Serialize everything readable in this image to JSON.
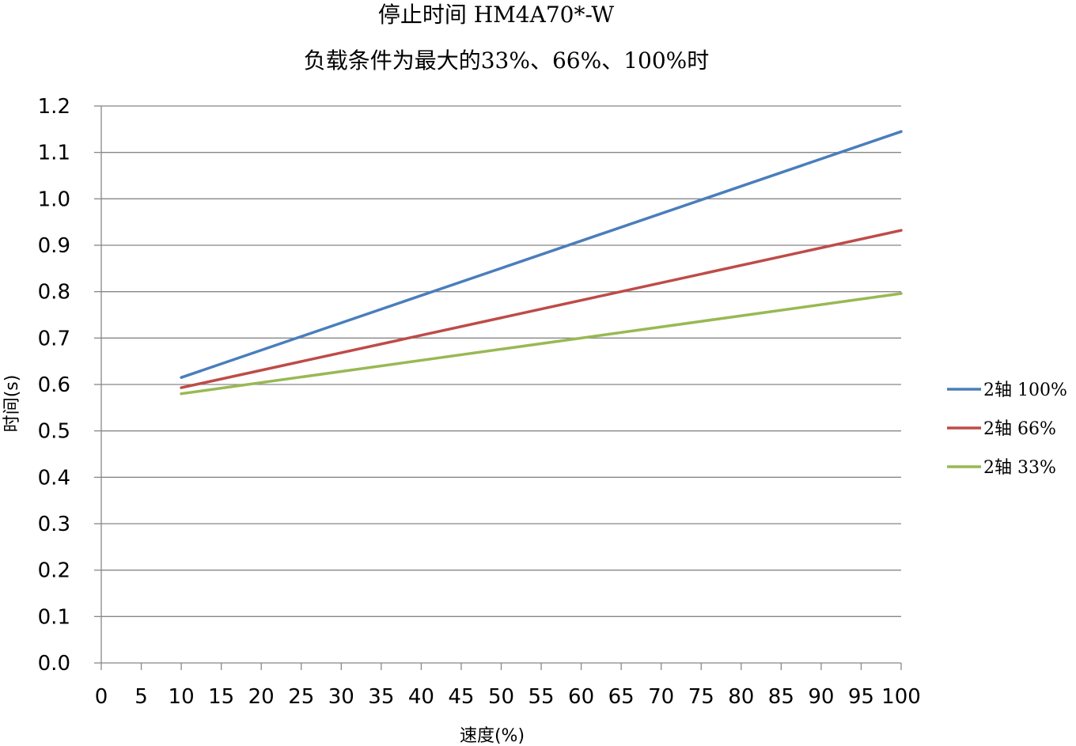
{
  "chart_data": {
    "type": "line",
    "title": "停止时间 HM4A70*-W",
    "subtitle": "负载条件为最大的33%、66%、100%时",
    "xlabel": "速度(%)",
    "ylabel": "时间(s)",
    "xlim": [
      0,
      100
    ],
    "ylim": [
      0.0,
      1.2
    ],
    "x_ticks": [
      "0",
      "5",
      "10",
      "15",
      "20",
      "25",
      "30",
      "35",
      "40",
      "45",
      "50",
      "55",
      "60",
      "65",
      "70",
      "75",
      "80",
      "85",
      "90",
      "95",
      "100"
    ],
    "y_ticks": [
      "0.0",
      "0.1",
      "0.2",
      "0.3",
      "0.4",
      "0.5",
      "0.6",
      "0.7",
      "0.8",
      "0.9",
      "1.0",
      "1.1",
      "1.2"
    ],
    "grid": "horizontal",
    "legend_position": "right",
    "series": [
      {
        "name": "2轴 100%",
        "color": "#4A7EBB",
        "x": [
          10,
          100
        ],
        "y": [
          0.615,
          1.145
        ]
      },
      {
        "name": "2轴 66%",
        "color": "#BE4B48",
        "x": [
          10,
          100
        ],
        "y": [
          0.593,
          0.932
        ]
      },
      {
        "name": "2轴 33%",
        "color": "#98B954",
        "x": [
          10,
          100
        ],
        "y": [
          0.58,
          0.796
        ]
      }
    ]
  }
}
